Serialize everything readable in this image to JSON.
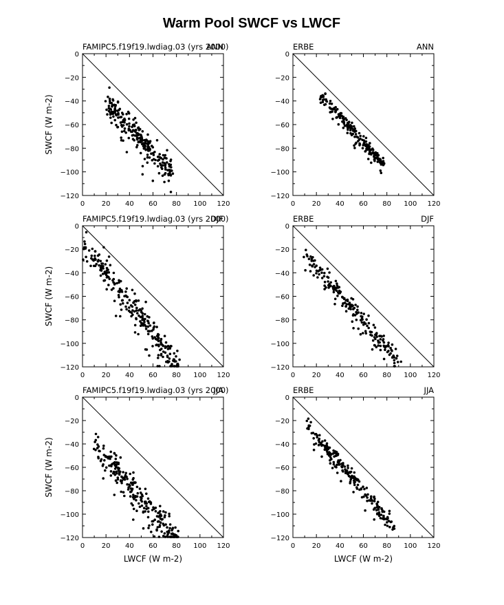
{
  "figure": {
    "title": "Warm Pool SWCF vs LWCF"
  },
  "chart_data": [
    {
      "type": "scatter",
      "left_label": "FAMIPC5.f19f19.lwdiag.03 (yrs 2000)",
      "right_label": "ANN",
      "xlabel": "",
      "ylabel": "SWCF (W m-2)",
      "xlim": [
        0,
        120
      ],
      "ylim": [
        -120,
        0
      ],
      "xticks": [
        0,
        20,
        40,
        60,
        80,
        100,
        120
      ],
      "yticks": [
        0,
        -20,
        -40,
        -60,
        -80,
        -100,
        -120
      ],
      "reference_line": "1:1 diagonal",
      "cluster": {
        "x_min": 20,
        "x_max": 75,
        "y_at_xmin": -40,
        "y_at_xmax": -100,
        "spread": 9,
        "n": 240
      },
      "points": []
    },
    {
      "type": "scatter",
      "left_label": "ERBE",
      "right_label": "ANN",
      "xlabel": "",
      "ylabel": "",
      "xlim": [
        0,
        120
      ],
      "ylim": [
        -120,
        0
      ],
      "xticks": [
        0,
        20,
        40,
        60,
        80,
        100,
        120
      ],
      "yticks": [
        0,
        -20,
        -40,
        -60,
        -80,
        -100,
        -120
      ],
      "reference_line": "1:1 diagonal",
      "cluster": {
        "x_min": 23,
        "x_max": 77,
        "y_at_xmin": -34,
        "y_at_xmax": -93,
        "spread": 4,
        "n": 200
      },
      "points": []
    },
    {
      "type": "scatter",
      "left_label": "FAMIPC5.f19f19.lwdiag.03 (yrs 2000)",
      "right_label": "DJF",
      "xlabel": "",
      "ylabel": "SWCF (W m-2)",
      "xlim": [
        0,
        120
      ],
      "ylim": [
        -120,
        0
      ],
      "xticks": [
        0,
        20,
        40,
        60,
        80,
        100,
        120
      ],
      "yticks": [
        0,
        -20,
        -40,
        -60,
        -80,
        -100,
        -120
      ],
      "reference_line": "1:1 diagonal",
      "cluster": {
        "x_min": 2,
        "x_max": 82,
        "y_at_xmin": -16,
        "y_at_xmax": -118,
        "spread": 10,
        "n": 260
      },
      "points": []
    },
    {
      "type": "scatter",
      "left_label": "ERBE",
      "right_label": "DJF",
      "xlabel": "",
      "ylabel": "",
      "xlim": [
        0,
        120
      ],
      "ylim": [
        -120,
        0
      ],
      "xticks": [
        0,
        20,
        40,
        60,
        80,
        100,
        120
      ],
      "yticks": [
        0,
        -20,
        -40,
        -60,
        -80,
        -100,
        -120
      ],
      "reference_line": "1:1 diagonal",
      "cluster": {
        "x_min": 10,
        "x_max": 90,
        "y_at_xmin": -23,
        "y_at_xmax": -115,
        "spread": 7,
        "n": 200
      },
      "points": []
    },
    {
      "type": "scatter",
      "left_label": "FAMIPC5.f19f19.lwdiag.03 (yrs 2000)",
      "right_label": "JJA",
      "xlabel": "LWCF (W m-2)",
      "ylabel": "SWCF (W m-2)",
      "xlim": [
        0,
        120
      ],
      "ylim": [
        -120,
        0
      ],
      "xticks": [
        0,
        20,
        40,
        60,
        80,
        100,
        120
      ],
      "yticks": [
        0,
        -20,
        -40,
        -60,
        -80,
        -100,
        -120
      ],
      "reference_line": "1:1 diagonal",
      "cluster": {
        "x_min": 10,
        "x_max": 80,
        "y_at_xmin": -40,
        "y_at_xmax": -120,
        "spread": 10,
        "n": 260
      },
      "points": []
    },
    {
      "type": "scatter",
      "left_label": "ERBE",
      "right_label": "JJA",
      "xlabel": "LWCF (W m-2)",
      "ylabel": "",
      "xlim": [
        0,
        120
      ],
      "ylim": [
        -120,
        0
      ],
      "xticks": [
        0,
        20,
        40,
        60,
        80,
        100,
        120
      ],
      "yticks": [
        0,
        -20,
        -40,
        -60,
        -80,
        -100,
        -120
      ],
      "reference_line": "1:1 diagonal",
      "cluster": {
        "x_min": 11,
        "x_max": 86,
        "y_at_xmin": -22,
        "y_at_xmax": -110,
        "spread": 5,
        "n": 220
      },
      "points": []
    }
  ]
}
